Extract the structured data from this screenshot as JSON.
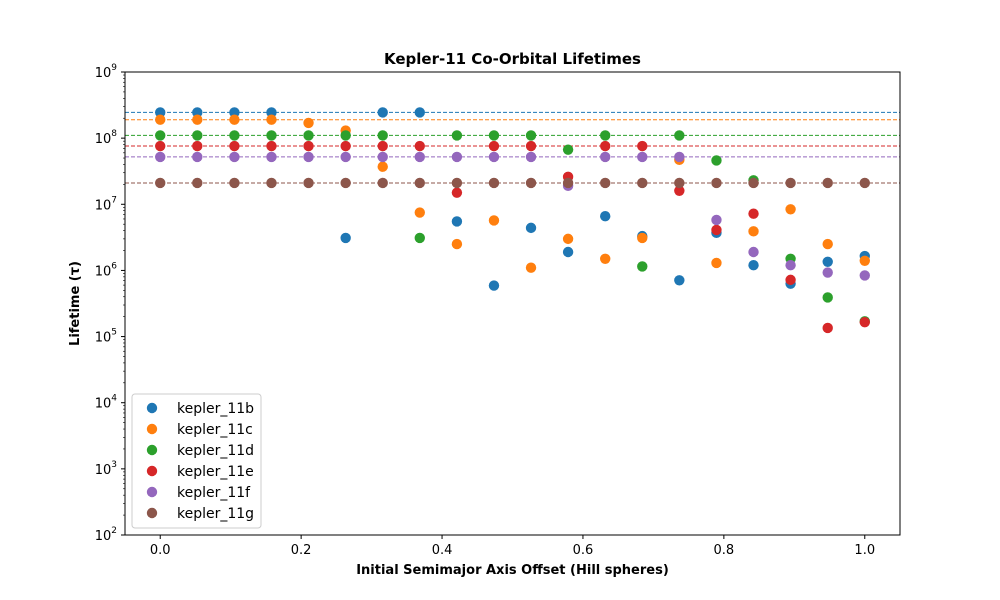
{
  "chart_data": {
    "type": "scatter",
    "title": "Kepler-11 Co-Orbital Lifetimes",
    "xlabel": "Initial Semimajor Axis Offset (Hill spheres)",
    "ylabel": "Lifetime (τ)",
    "xlim": [
      -0.05,
      1.05
    ],
    "ylim": [
      100,
      1000000000
    ],
    "yscale": "log",
    "grid": false,
    "legend_position": "lower-left",
    "x_ticks": [
      0.0,
      0.2,
      0.4,
      0.6,
      0.8,
      1.0
    ],
    "x_tick_labels": [
      "0.0",
      "0.2",
      "0.4",
      "0.6",
      "0.8",
      "1.0"
    ],
    "y_ticks": [
      100,
      1000,
      10000,
      100000,
      1000000,
      10000000,
      100000000,
      1000000000
    ],
    "y_tick_exponents": [
      "2",
      "3",
      "4",
      "5",
      "6",
      "7",
      "8",
      "9"
    ],
    "y_tick_base": "10",
    "x": [
      0.0,
      0.0526,
      0.1053,
      0.1579,
      0.2105,
      0.2632,
      0.3158,
      0.3684,
      0.4211,
      0.4737,
      0.5263,
      0.5789,
      0.6316,
      0.6842,
      0.7368,
      0.7895,
      0.8421,
      0.8947,
      0.9474,
      1.0
    ],
    "series": [
      {
        "name": "kepler_11b",
        "color": "#1f77b4",
        "reference_line": 245000000,
        "values": [
          245000000,
          245000000,
          245000000,
          245000000,
          null,
          3100000,
          245000000,
          245000000,
          5500000,
          590000,
          4400000,
          1900000,
          6600000,
          3300000,
          710000,
          3700000,
          1200000,
          630000,
          1350000,
          1650000
        ]
      },
      {
        "name": "kepler_11c",
        "color": "#ff7f0e",
        "reference_line": 190000000,
        "values": [
          190000000,
          190000000,
          190000000,
          190000000,
          170000000,
          130000000,
          37000000,
          7500000,
          2500000,
          5700000,
          1100000,
          3000000,
          1500000,
          3100000,
          47000000,
          1300000,
          3900000,
          8400000,
          2500000,
          1400000
        ]
      },
      {
        "name": "kepler_11d",
        "color": "#2ca02c",
        "reference_line": 110000000,
        "values": [
          110000000,
          110000000,
          110000000,
          110000000,
          110000000,
          110000000,
          110000000,
          3100000,
          110000000,
          110000000,
          110000000,
          67000000,
          110000000,
          1150000,
          110000000,
          46000000,
          23000000,
          1500000,
          390000,
          170000
        ]
      },
      {
        "name": "kepler_11e",
        "color": "#d62728",
        "reference_line": 76000000,
        "values": [
          76000000,
          76000000,
          76000000,
          76000000,
          76000000,
          76000000,
          76000000,
          76000000,
          15000000,
          76000000,
          76000000,
          26000000,
          76000000,
          76000000,
          16000000,
          4100000,
          7200000,
          720000,
          135000,
          165000
        ]
      },
      {
        "name": "kepler_11f",
        "color": "#9467bd",
        "reference_line": 52000000,
        "values": [
          52000000,
          52000000,
          52000000,
          52000000,
          52000000,
          52000000,
          52000000,
          52000000,
          52000000,
          52000000,
          52000000,
          19000000,
          52000000,
          52000000,
          52000000,
          5800000,
          1900000,
          1200000,
          930000,
          840000
        ]
      },
      {
        "name": "kepler_11g",
        "color": "#8c564b",
        "reference_line": 21000000,
        "values": [
          21000000,
          21000000,
          21000000,
          21000000,
          21000000,
          21000000,
          21000000,
          21000000,
          21000000,
          21000000,
          21000000,
          21000000,
          21000000,
          21000000,
          21000000,
          21000000,
          21000000,
          21000000,
          21000000,
          21000000
        ]
      }
    ]
  }
}
